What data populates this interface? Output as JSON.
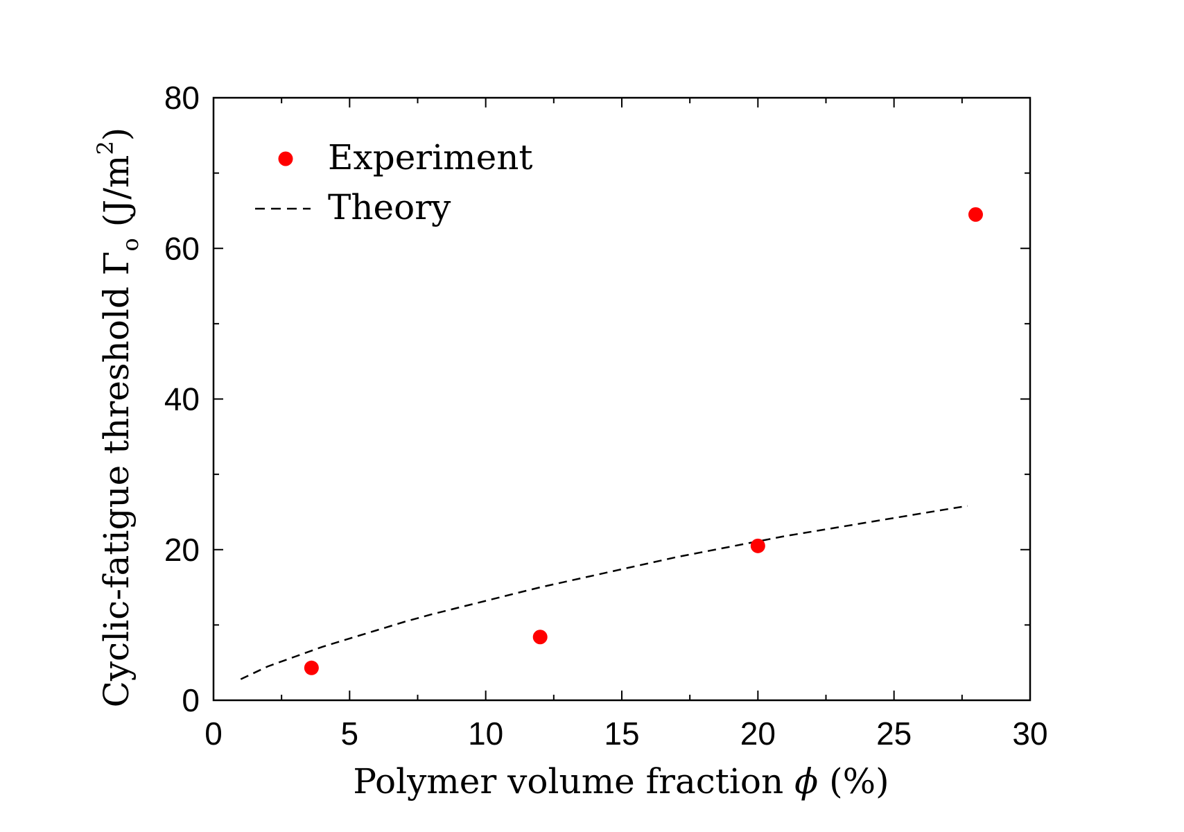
{
  "chart_data": {
    "type": "scatter",
    "title": "",
    "xlabel": "Polymer volume fraction ϕ (%)",
    "xlabel_parts": {
      "prefix": "Polymer volume fraction ",
      "symbol": "ϕ",
      "suffix": " (%)"
    },
    "ylabel": "Cyclic-fatigue threshold Γo (J/m2)",
    "ylabel_parts": {
      "prefix": "Cyclic-fatigue threshold ",
      "symbol": "Γ",
      "subscript": "o",
      "unit_open": " (J/m",
      "unit_sup": "2",
      "unit_close": ")"
    },
    "xlim": [
      0,
      30
    ],
    "ylim": [
      0,
      80
    ],
    "x_ticks": [
      0,
      5,
      10,
      15,
      20,
      25,
      30
    ],
    "y_ticks": [
      0,
      20,
      40,
      60,
      80
    ],
    "x_minor_step": 2.5,
    "y_minor_step": 10,
    "grid": false,
    "legend_position": "top-left",
    "series": [
      {
        "name": "Experiment",
        "kind": "scatter",
        "color": "#ff0000",
        "x": [
          3.6,
          12.0,
          20.0,
          28.0
        ],
        "y": [
          4.3,
          8.4,
          20.5,
          64.5
        ]
      },
      {
        "name": "Theory",
        "kind": "line",
        "style": "dashed",
        "color": "#000000",
        "x": [
          1.0,
          2.0,
          3.0,
          4.0,
          5.0,
          6.0,
          7.0,
          8.0,
          9.0,
          10.0,
          11.0,
          12.0,
          13.0,
          14.0,
          15.0,
          16.0,
          17.0,
          18.0,
          19.0,
          20.0,
          21.0,
          22.0,
          23.0,
          24.0,
          25.0,
          26.0,
          27.0,
          27.7
        ],
        "y": [
          2.8,
          4.5,
          5.8,
          7.1,
          8.2,
          9.3,
          10.4,
          11.4,
          12.3,
          13.2,
          14.1,
          15.0,
          15.8,
          16.6,
          17.4,
          18.2,
          19.0,
          19.7,
          20.4,
          21.1,
          21.8,
          22.4,
          23.0,
          23.6,
          24.2,
          24.8,
          25.4,
          25.8
        ]
      }
    ]
  }
}
